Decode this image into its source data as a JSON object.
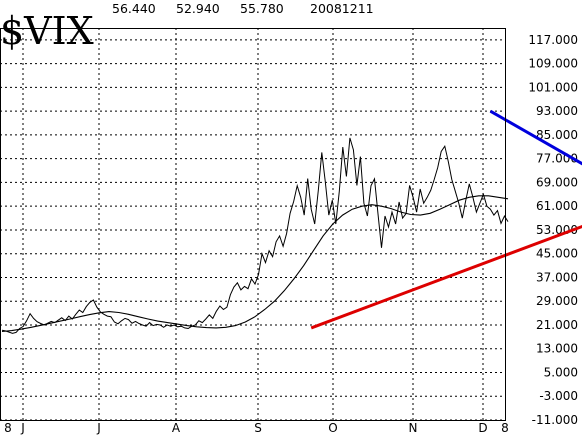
{
  "chart_data": {
    "type": "line",
    "title": "$VIX",
    "quote_values": [
      "56.440",
      "52.940",
      "55.780",
      "20081211"
    ],
    "yticks": [
      "117.000",
      "109.000",
      "101.000",
      "93.000",
      "85.000",
      "77.000",
      "69.000",
      "61.000",
      "53.000",
      "45.000",
      "37.000",
      "29.000",
      "21.000",
      "13.000",
      "5.000",
      "-3.000",
      "-11.000"
    ],
    "xticks": [
      "8",
      "J",
      "J",
      "A",
      "S",
      "O",
      "N",
      "D",
      "8"
    ],
    "ylim": [
      -11,
      121
    ],
    "grid": true,
    "series": [
      {
        "values": [
          19.2,
          19.0,
          18.6,
          18.2,
          18.5,
          19.8,
          20.5,
          22.4,
          24.8,
          23.2,
          22.1,
          21.5,
          21.0,
          21.6,
          22.2,
          21.8,
          22.6,
          23.4,
          22.5,
          24.0,
          23.0,
          24.6,
          26.0,
          25.2,
          27.2,
          28.6,
          29.4,
          27.0,
          25.4,
          24.6,
          24.0,
          23.8,
          22.0,
          21.4,
          22.4,
          23.2,
          22.8,
          21.6,
          22.2,
          21.5,
          21.0,
          20.6,
          21.8,
          20.8,
          21.2,
          21.0,
          20.2,
          21.0,
          20.6,
          21.0,
          20.4,
          20.6,
          20.0,
          19.8,
          20.6,
          21.0,
          22.4,
          21.8,
          23.0,
          24.4,
          23.2,
          25.6,
          27.4,
          26.2,
          27.0,
          31.2,
          33.8,
          35.2,
          32.8,
          34.0,
          33.2,
          36.5,
          34.8,
          38.0,
          45.0,
          42.0,
          46.0,
          44.0,
          49.0,
          51.0,
          47.5,
          51.8,
          58.6,
          62.6,
          67.9,
          64.0,
          58.0,
          70.3,
          60.0,
          55.0,
          66.3,
          79.1,
          69.2,
          58.0,
          63.0,
          55.0,
          66.0,
          80.9,
          71.0,
          84.0,
          80.0,
          68.0,
          77.7,
          62.0,
          57.7,
          67.9,
          70.2,
          58.4,
          47.0,
          57.7,
          54.0,
          59.0,
          55.0,
          62.4,
          57.0,
          58.5,
          68.0,
          64.0,
          59.0,
          66.8,
          62.0,
          64.0,
          66.3,
          70.0,
          74.0,
          79.4,
          81.2,
          76.0,
          70.0,
          66.0,
          62.0,
          57.0,
          63.0,
          68.5,
          64.0,
          59.0,
          62.0,
          65.0,
          61.0,
          60.0,
          58.0,
          59.5,
          55.2,
          57.7,
          55.8
        ],
        "color": "#000000"
      },
      {
        "values": [
          18.8,
          19.1,
          19.6,
          20.2,
          20.9,
          21.6,
          22.3,
          23.0,
          23.8,
          24.5,
          25.1,
          25.5,
          25.2,
          24.6,
          23.8,
          23.0,
          22.3,
          21.8,
          21.3,
          20.8,
          20.4,
          20.1,
          20.0,
          20.2,
          20.8,
          22.0,
          23.8,
          26.2,
          29.0,
          32.5,
          36.5,
          41.0,
          46.0,
          51.0,
          55.0,
          58.0,
          60.0,
          61.0,
          61.5,
          61.0,
          60.2,
          59.0,
          58.2,
          58.0,
          58.6,
          60.0,
          61.5,
          63.0,
          64.0,
          64.5,
          64.5,
          64.0,
          63.5
        ],
        "color": "#000000"
      }
    ],
    "trendlines": [
      {
        "from": [
          139,
          93.0
        ],
        "to": [
          167,
          74.0
        ],
        "color": "#0000dd"
      },
      {
        "from": [
          88,
          20.0
        ],
        "to": [
          167,
          55.0
        ],
        "color": "#dd0000"
      }
    ]
  }
}
